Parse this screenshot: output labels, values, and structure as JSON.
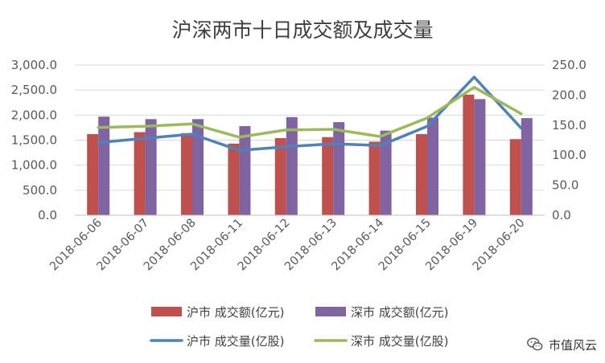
{
  "chart_data": {
    "type": "bar",
    "title": "沪深两市十日成交额及成交量",
    "categories": [
      "2018-06-06",
      "2018-06-07",
      "2018-06-08",
      "2018-06-11",
      "2018-06-12",
      "2018-06-13",
      "2018-06-14",
      "2018-06-15",
      "2018-06-19",
      "2018-06-20"
    ],
    "y_left": {
      "min": 0,
      "max": 3000,
      "step": 500,
      "ticks": [
        "0.0",
        "500.0",
        "1,000.0",
        "1,500.0",
        "2,000.0",
        "2,500.0",
        "3,000.0"
      ]
    },
    "y_right": {
      "min": 0,
      "max": 250,
      "step": 50,
      "ticks": [
        "0.0",
        "50.0",
        "100.0",
        "150.0",
        "200.0",
        "250.0"
      ]
    },
    "series": [
      {
        "name": "沪市 成交额(亿元)",
        "kind": "bar",
        "axis": "left",
        "color": "#C0504D",
        "values": [
          1620,
          1660,
          1640,
          1430,
          1540,
          1560,
          1470,
          1620,
          2410,
          1520
        ]
      },
      {
        "name": "深市 成交额(亿元)",
        "kind": "bar",
        "axis": "left",
        "color": "#8064A2",
        "values": [
          1970,
          1920,
          1920,
          1780,
          1960,
          1860,
          1690,
          1950,
          2320,
          1940
        ]
      },
      {
        "name": "沪市 成交量(亿股)",
        "kind": "line",
        "axis": "right",
        "color": "#4F81BD",
        "values": [
          121,
          128,
          135,
          108,
          114,
          119,
          116,
          148,
          230,
          145
        ]
      },
      {
        "name": "深市 成交量(亿股)",
        "kind": "line",
        "axis": "right",
        "color": "#9BBB59",
        "values": [
          146,
          148,
          152,
          130,
          142,
          143,
          131,
          162,
          213,
          169
        ]
      }
    ],
    "legend_position": "bottom",
    "grid": true
  },
  "watermark": {
    "text": "市值风云",
    "icon": "wechat-icon"
  }
}
